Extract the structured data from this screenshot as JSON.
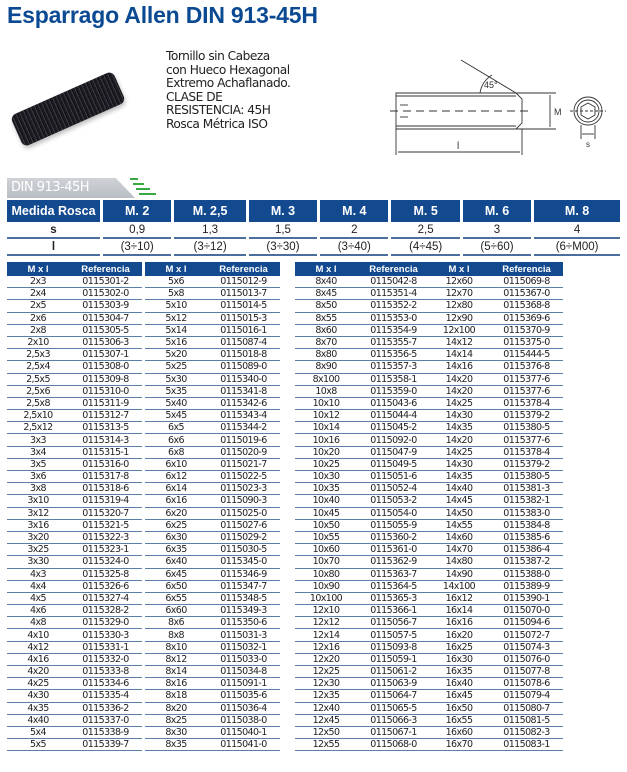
{
  "title": "Esparrago Allen DIN 913-45H",
  "description": [
    "Tornillo sin Cabeza",
    "con Hueco Hexagonal",
    "Extremo Achaflanado.",
    "CLASE DE",
    "RESISTENCIA: 45H",
    "Rosca Métrica ISO"
  ],
  "diagram": {
    "angle_label": "45°",
    "m_label": "M",
    "l_label": "l",
    "s_label": "s"
  },
  "section_tab": "DIN 913-45H",
  "colors": {
    "brand_blue": "#12498f",
    "title_blue": "#0b4a93",
    "stripe_green": "#3aa845"
  },
  "spec": {
    "header": [
      "Medida Rosca",
      "M. 2",
      "M. 2,5",
      "M. 3",
      "M. 4",
      "M. 5",
      "M. 6",
      "M. 8"
    ],
    "rows": [
      [
        "s",
        "0,9",
        "1,3",
        "1,5",
        "2",
        "2,5",
        "3",
        "4"
      ],
      [
        "l",
        "(3÷10)",
        "(3÷12)",
        "(3÷30)",
        "(3÷40)",
        "(4÷45)",
        "(5÷60)",
        "(6÷M00)"
      ]
    ]
  },
  "list_headers": [
    "M x l",
    "Referencia"
  ],
  "blocks": [
    [
      [
        "2x3",
        "0115301-2",
        "5x6",
        "0115012-9"
      ],
      [
        "2x4",
        "0115302-0",
        "5x8",
        "0115013-7"
      ],
      [
        "2x5",
        "0115303-9",
        "5x10",
        "0115014-5"
      ],
      [
        "2x6",
        "0115304-7",
        "5x12",
        "0115015-3"
      ],
      [
        "2x8",
        "0115305-5",
        "5x14",
        "0115016-1"
      ],
      [
        "2x10",
        "0115306-3",
        "5x16",
        "0115087-4"
      ],
      [
        "2,5x3",
        "0115307-1",
        "5x20",
        "0115018-8"
      ],
      [
        "2,5x4",
        "0115308-0",
        "5x25",
        "0115089-0"
      ],
      [
        "2,5x5",
        "0115309-8",
        "5x30",
        "0115340-0"
      ],
      [
        "2,5x6",
        "0115310-0",
        "5x35",
        "0115341-8"
      ],
      [
        "2,5x8",
        "0115311-9",
        "5x40",
        "0115342-6"
      ],
      [
        "2,5x10",
        "0115312-7",
        "5x45",
        "0115343-4"
      ],
      [
        "2,5x12",
        "0115313-5",
        "6x5",
        "0115344-2"
      ],
      [
        "3x3",
        "0115314-3",
        "6x6",
        "0115019-6"
      ],
      [
        "3x4",
        "0115315-1",
        "6x8",
        "0115020-9"
      ],
      [
        "3x5",
        "0115316-0",
        "6x10",
        "0115021-7"
      ],
      [
        "3x6",
        "0115317-8",
        "6x12",
        "0115022-5"
      ],
      [
        "3x8",
        "0115318-6",
        "6x14",
        "0115023-3"
      ],
      [
        "3x10",
        "0115319-4",
        "6x16",
        "0115090-3"
      ],
      [
        "3x12",
        "0115320-7",
        "6x20",
        "0115025-0"
      ],
      [
        "3x16",
        "0115321-5",
        "6x25",
        "0115027-6"
      ],
      [
        "3x20",
        "0115322-3",
        "6x30",
        "0115029-2"
      ],
      [
        "3x25",
        "0115323-1",
        "6x35",
        "0115030-5"
      ],
      [
        "3x30",
        "0115324-0",
        "6x40",
        "0115345-0"
      ],
      [
        "4x3",
        "0115325-8",
        "6x45",
        "0115346-9"
      ],
      [
        "4x4",
        "0115326-6",
        "6x50",
        "0115347-7"
      ],
      [
        "4x5",
        "0115327-4",
        "6x55",
        "0115348-5"
      ],
      [
        "4x6",
        "0115328-2",
        "6x60",
        "0115349-3"
      ],
      [
        "4x8",
        "0115329-0",
        "8x6",
        "0115350-6"
      ],
      [
        "4x10",
        "0115330-3",
        "8x8",
        "0115031-3"
      ],
      [
        "4x12",
        "0115331-1",
        "8x10",
        "0115032-1"
      ],
      [
        "4x16",
        "0115332-0",
        "8x12",
        "0115033-0"
      ],
      [
        "4x20",
        "0115333-8",
        "8x14",
        "0115034-8"
      ],
      [
        "4x25",
        "0115334-6",
        "8x16",
        "0115091-1"
      ],
      [
        "4x30",
        "0115335-4",
        "8x18",
        "0115035-6"
      ],
      [
        "4x35",
        "0115336-2",
        "8x20",
        "0115036-4"
      ],
      [
        "4x40",
        "0115337-0",
        "8x25",
        "0115038-0"
      ],
      [
        "5x4",
        "0115338-9",
        "8x30",
        "0115040-1"
      ],
      [
        "5x5",
        "0115339-7",
        "8x35",
        "0115041-0"
      ]
    ],
    [
      [
        "8x40",
        "0115042-8",
        "12x60",
        "0115069-8"
      ],
      [
        "8x45",
        "0115351-4",
        "12x70",
        "0115367-0"
      ],
      [
        "8x50",
        "0115352-2",
        "12x80",
        "0115368-8"
      ],
      [
        "8x55",
        "0115353-0",
        "12x90",
        "0115369-6"
      ],
      [
        "8x60",
        "0115354-9",
        "12x100",
        "0115370-9"
      ],
      [
        "8x70",
        "0115355-7",
        "14x12",
        "0115375-0"
      ],
      [
        "8x80",
        "0115356-5",
        "14x14",
        "0115444-5"
      ],
      [
        "8x90",
        "0115357-3",
        "14x16",
        "0115376-8"
      ],
      [
        "8x100",
        "0115358-1",
        "14x20",
        "0115377-6"
      ],
      [
        "10x8",
        "0115359-0",
        "14x20",
        "0115377-6"
      ],
      [
        "10x10",
        "0115043-6",
        "14x25",
        "0115378-4"
      ],
      [
        "10x12",
        "0115044-4",
        "14x30",
        "0115379-2"
      ],
      [
        "10x14",
        "0115045-2",
        "14x35",
        "0115380-5"
      ],
      [
        "10x16",
        "0115092-0",
        "14x20",
        "0115377-6"
      ],
      [
        "10x20",
        "0115047-9",
        "14x25",
        "0115378-4"
      ],
      [
        "10x25",
        "0115049-5",
        "14x30",
        "0115379-2"
      ],
      [
        "10x30",
        "0115051-6",
        "14x35",
        "0115380-5"
      ],
      [
        "10x35",
        "0115052-4",
        "14x40",
        "0115381-3"
      ],
      [
        "10x40",
        "0115053-2",
        "14x45",
        "0115382-1"
      ],
      [
        "10x45",
        "0115054-0",
        "14x50",
        "0115383-0"
      ],
      [
        "10x50",
        "0115055-9",
        "14x55",
        "0115384-8"
      ],
      [
        "10x55",
        "0115360-2",
        "14x60",
        "0115385-6"
      ],
      [
        "10x60",
        "0115361-0",
        "14x70",
        "0115386-4"
      ],
      [
        "10x70",
        "0115362-9",
        "14x80",
        "0115387-2"
      ],
      [
        "10x80",
        "0115363-7",
        "14x90",
        "0115388-0"
      ],
      [
        "10x90",
        "0115364-5",
        "14x100",
        "0115389-9"
      ],
      [
        "10x100",
        "0115365-3",
        "16x12",
        "0115390-1"
      ],
      [
        "12x10",
        "0115366-1",
        "16x14",
        "0115070-0"
      ],
      [
        "12x12",
        "0115056-7",
        "16x16",
        "0115094-6"
      ],
      [
        "12x14",
        "0115057-5",
        "16x20",
        "0115072-7"
      ],
      [
        "12x16",
        "0115093-8",
        "16x25",
        "0115074-3"
      ],
      [
        "12x20",
        "0115059-1",
        "16x30",
        "0115076-0"
      ],
      [
        "12x25",
        "0115061-2",
        "16x35",
        "0115077-8"
      ],
      [
        "12x30",
        "0115063-9",
        "16x40",
        "0115078-6"
      ],
      [
        "12x35",
        "0115064-7",
        "16x45",
        "0115079-4"
      ],
      [
        "12x40",
        "0115065-5",
        "16x50",
        "0115080-7"
      ],
      [
        "12x45",
        "0115066-3",
        "16x55",
        "0115081-5"
      ],
      [
        "12x50",
        "0115067-1",
        "16x60",
        "0115082-3"
      ],
      [
        "12x55",
        "0115068-0",
        "16x70",
        "0115083-1"
      ]
    ]
  ]
}
